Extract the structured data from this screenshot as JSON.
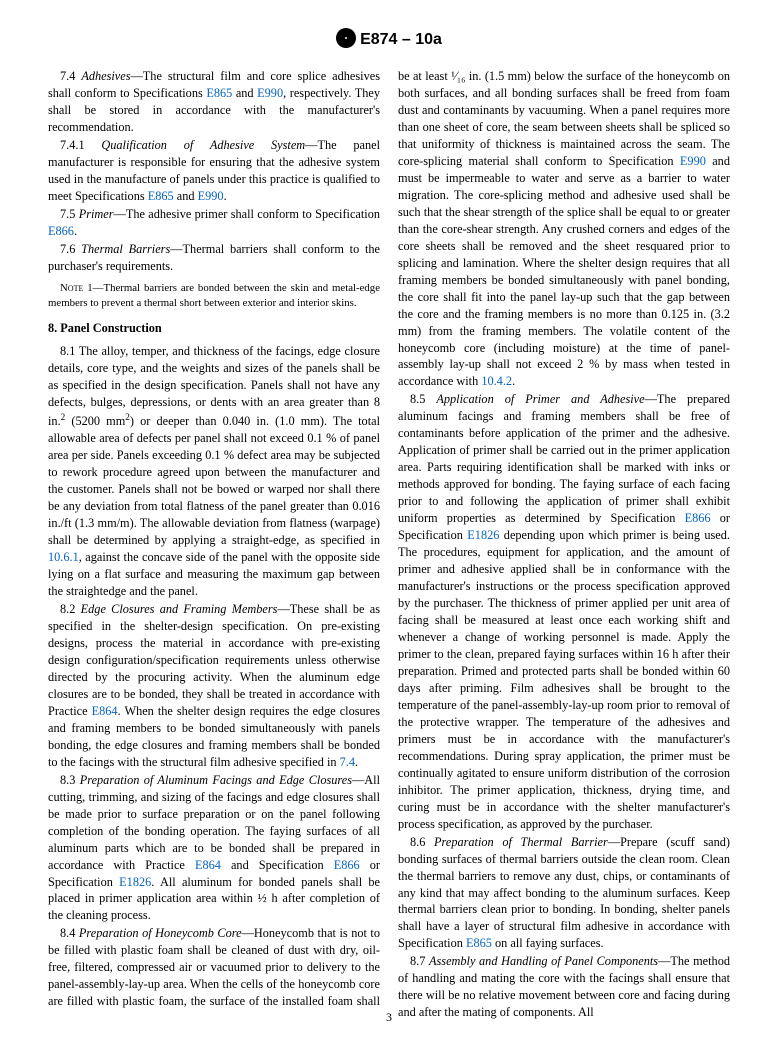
{
  "header": {
    "designation": "E874 – 10a"
  },
  "pagenum": "3",
  "refs": {
    "E865": "E865",
    "E990": "E990",
    "E866": "E866",
    "E864": "E864",
    "E1826": "E1826",
    "s1061": "10.6.1",
    "s74": "7.4",
    "s1042": "10.4.2"
  },
  "p": {
    "p74a": "7.4 ",
    "p74b": "Adhesives",
    "p74c": "—The structural film and core splice adhesives shall conform to Specifications ",
    "p74d": " and ",
    "p74e": ", respectively. They shall be stored in accordance with the manufacturer's recommendation.",
    "p741a": "7.4.1 ",
    "p741b": "Qualification of Adhesive System",
    "p741c": "—The panel manufacturer is responsible for ensuring that the adhesive system used in the manufacture of panels under this practice is qualified to meet Specifications ",
    "p741d": " and ",
    "p741e": ".",
    "p75a": "7.5 ",
    "p75b": "Primer",
    "p75c": "—The adhesive primer shall conform to Specification ",
    "p75d": ".",
    "p76a": "7.6 ",
    "p76b": "Thermal Barriers",
    "p76c": "—Thermal barriers shall conform to the purchaser's requirements.",
    "note1a": "Note 1—",
    "note1b": "Thermal barriers are bonded between the skin and metal-edge members to prevent a thermal short between exterior and interior skins.",
    "s8": "8. Panel Construction",
    "p81a": "8.1 The alloy, temper, and thickness of the facings, edge closure details, core type, and the weights and sizes of the panels shall be as specified in the design specification. Panels shall not have any defects, bulges, depressions, or dents with an area greater than 8 in.",
    "p81b": " (5200 mm",
    "p81c": ") or deeper than 0.040 in. (1.0 mm). The total allowable area of defects per panel shall not exceed 0.1 % of panel area per side. Panels exceeding 0.1 % defect area may be subjected to rework procedure agreed upon between the manufacturer and the customer. Panels shall not be bowed or warped nor shall there be any deviation from total flatness of the panel greater than 0.016 in./ft (1.3 mm/m). The allowable deviation from flatness (warpage) shall be determined by applying a straight-edge, as specified in ",
    "p81d": ", against the concave side of the panel with the opposite side lying on a flat surface and measuring the maximum gap between the straightedge and the panel.",
    "p82a": "8.2 ",
    "p82b": "Edge Closures and Framing Members",
    "p82c": "—These shall be as specified in the shelter-design specification. On pre-existing designs, process the material in accordance with pre-existing design configuration/specification requirements unless otherwise directed by the procuring activity. When the aluminum edge closures are to be bonded, they shall be treated in accordance with Practice ",
    "p82d": ". When the shelter design requires the edge closures and framing members to be bonded simultaneously with panels bonding, the edge closures and framing members shall be bonded to the facings with the structural film adhesive specified in ",
    "p82e": ".",
    "p83a": "8.3 ",
    "p83b": "Preparation of Aluminum Facings and Edge Closures",
    "p83c": "—All cutting, trimming, and sizing of the facings and edge closures shall be made prior to surface preparation or on the panel following completion of the bonding operation. The faying surfaces of all aluminum parts which are to be bonded shall be prepared in accordance with Practice ",
    "p83d": " and Specification ",
    "p83e": " or Specification ",
    "p83f": ". All aluminum for bonded panels shall be placed in primer application area within ½ h after completion of the cleaning process.",
    "p84a": "8.4 ",
    "p84b": "Preparation of Honeycomb Core",
    "p84c": "—Honeycomb that is not to be filled with plastic foam shall be cleaned of dust with dry, oil-free, filtered, compressed air or vacuumed prior to delivery to the panel-assembly-lay-up area. When the cells of the honeycomb core are filled with plastic foam, the surface of the installed foam shall be at least ¹⁄₁₆ in. (1.5 mm) below the ",
    "p84d": "surface of the honeycomb on both surfaces, and all bonding surfaces shall be freed from foam dust and contaminants by vacuuming. When a panel requires more than one sheet of core, the seam between sheets shall be spliced so that uniformity of thickness is maintained across the seam. The core-splicing material shall conform to Specification ",
    "p84e": " and must be impermeable to water and serve as a barrier to water migration. The core-splicing method and adhesive used shall be such that the shear strength of the splice shall be equal to or greater than the core-shear strength. Any crushed corners and edges of the core sheets shall be removed and the sheet resquared prior to splicing and lamination. Where the shelter design requires that all framing members be bonded simultaneously with panel bonding, the core shall fit into the panel lay-up such that the gap between the core and the framing members is no more than 0.125 in. (3.2 mm) from the framing members. The volatile content of the honeycomb core (including moisture) at the time of panel-assembly lay-up shall not exceed 2 % by mass when tested in accordance with ",
    "p84f": ".",
    "p85a": "8.5 ",
    "p85b": "Application of Primer and Adhesive",
    "p85c": "—The prepared aluminum facings and framing members shall be free of contaminants before application of the primer and the adhesive. Application of primer shall be carried out in the primer application area. Parts requiring identification shall be marked with inks or methods approved for bonding. The faying surface of each facing prior to and following the application of primer shall exhibit uniform properties as determined by Specification ",
    "p85d": " or Specification ",
    "p85e": " depending upon which primer is being used. The procedures, equipment for application, and the amount of primer and adhesive applied shall be in conformance with the manufacturer's instructions or the process specification approved by the purchaser. The thickness of primer applied per unit area of facing shall be measured at least once each working shift and whenever a change of working personnel is made. Apply the primer to the clean, prepared faying surfaces within 16 h after their preparation. Primed and protected parts shall be bonded within 60 days after priming. Film adhesives shall be brought to the temperature of the panel-assembly-lay-up room prior to removal of the protective wrapper. The temperature of the adhesives and primers must be in accordance with the manufacturer's recommendations. During spray application, the primer must be continually agitated to ensure uniform distribution of the corrosion inhibitor. The primer application, thickness, drying time, and curing must be in accordance with the shelter manufacturer's process specification, as approved by the purchaser.",
    "p86a": "8.6 ",
    "p86b": "Preparation of Thermal Barrier",
    "p86c": "—Prepare (scuff sand) bonding surfaces of thermal barriers outside the clean room. Clean the thermal barriers to remove any dust, chips, or contaminants of any kind that may affect bonding to the aluminum surfaces. Keep thermal barriers clean prior to bonding. In bonding, shelter panels shall have a layer of structural film adhesive in accordance with Specification ",
    "p86d": " on all faying surfaces.",
    "p87a": "8.7 ",
    "p87b": "Assembly and Handling of Panel Components",
    "p87c": "—The method of handling and mating the core with the facings shall ensure that there will be no relative movement between core and facing during and after the mating of components. All"
  }
}
